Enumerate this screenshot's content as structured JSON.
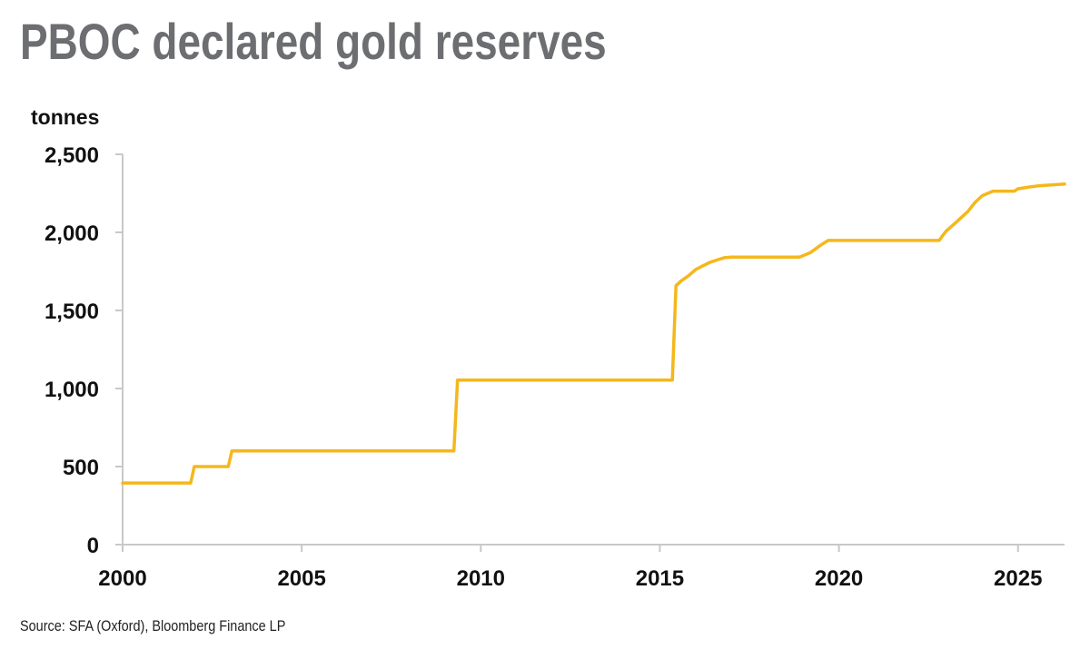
{
  "chart_data": {
    "type": "line",
    "title": "PBOC declared gold reserves",
    "ylabel": "tonnes",
    "source": "Source: SFA (Oxford), Bloomberg Finance LP",
    "xlim": [
      2000,
      2026.3
    ],
    "ylim": [
      0,
      2500
    ],
    "x_ticks": [
      2000,
      2005,
      2010,
      2015,
      2020,
      2025
    ],
    "x_tick_labels": [
      "2000",
      "2005",
      "2010",
      "2015",
      "2020",
      "2025"
    ],
    "y_ticks": [
      0,
      500,
      1000,
      1500,
      2000,
      2500
    ],
    "y_tick_labels": [
      "0",
      "500",
      "1,000",
      "1,500",
      "2,000",
      "2,500"
    ],
    "grid": false,
    "legend": "none",
    "line_color": "#f5b71a",
    "axis_color": "#c8c8c8",
    "series": [
      {
        "x": [
          2000.0,
          2001.9,
          2002.0,
          2002.95,
          2003.05,
          2009.25,
          2009.35,
          2015.35,
          2015.45,
          2015.6,
          2015.8,
          2016.0,
          2016.2,
          2016.4,
          2016.6,
          2016.8,
          2017.0,
          2018.0,
          2018.9,
          2019.2,
          2019.5,
          2019.7,
          2020.5,
          2021.5,
          2022.8,
          2022.9,
          2023.0,
          2023.2,
          2023.4,
          2023.6,
          2023.8,
          2024.0,
          2024.3,
          2024.9,
          2025.0,
          2025.3,
          2025.6,
          2026.3
        ],
        "y": [
          395,
          395,
          500,
          500,
          600,
          600,
          1054,
          1054,
          1658,
          1690,
          1722,
          1762,
          1786,
          1808,
          1823,
          1838,
          1842,
          1842,
          1842,
          1870,
          1920,
          1948,
          1948,
          1948,
          1948,
          1980,
          2010,
          2050,
          2092,
          2133,
          2192,
          2235,
          2264,
          2264,
          2279,
          2290,
          2299,
          2310
        ]
      }
    ]
  }
}
